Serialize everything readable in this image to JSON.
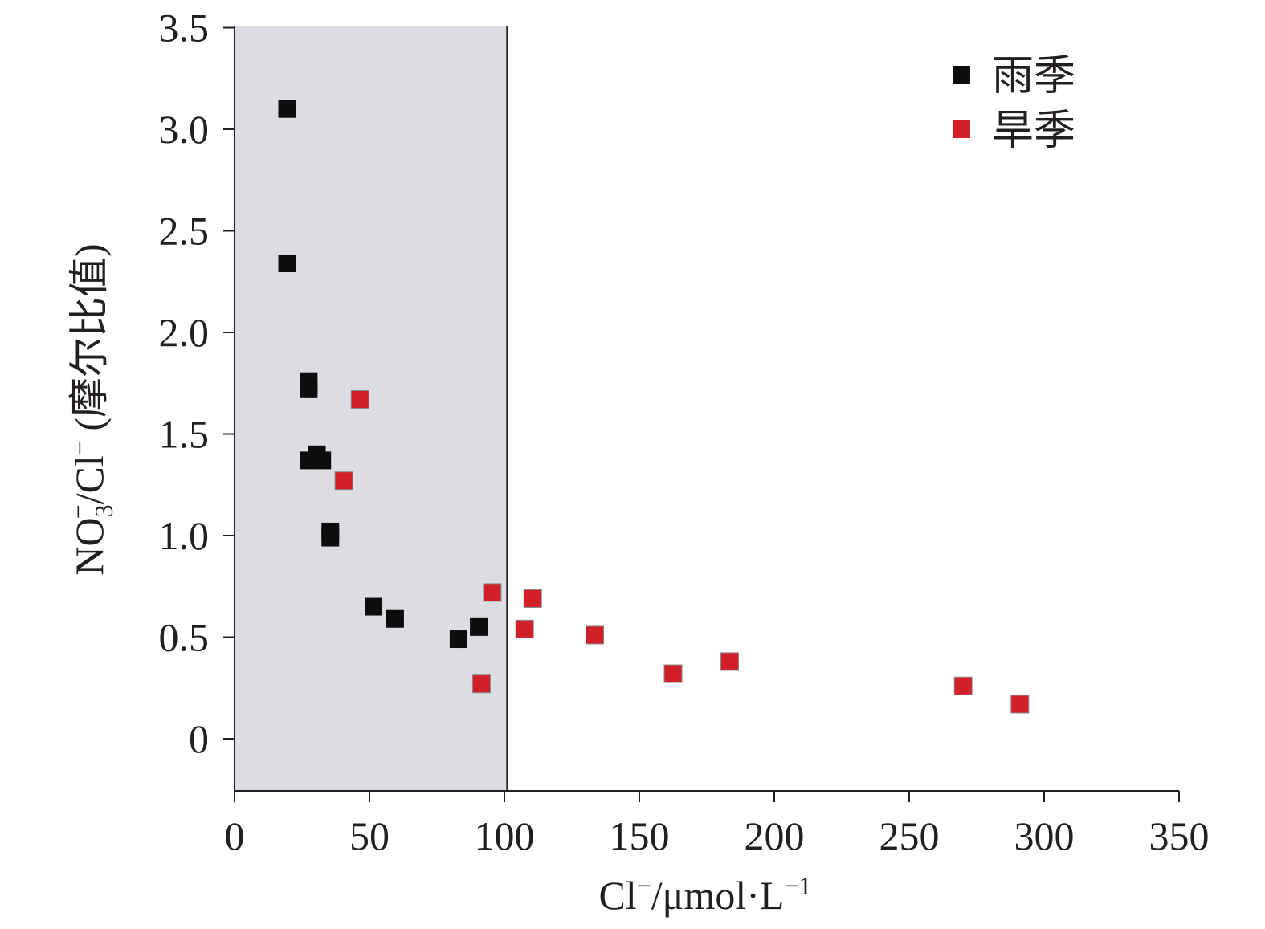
{
  "chart_data": {
    "type": "scatter",
    "title": "",
    "xlabel": {
      "prefix": "Cl",
      "sup1": "−",
      "middle": "/μmol·L",
      "sup2": "−1"
    },
    "ylabel": {
      "part1": "NO",
      "sub": "3",
      "sup1": "−",
      "part2": "/Cl",
      "sup2": "−",
      "part3": " (摩尔比值)"
    },
    "xlim": [
      0,
      350
    ],
    "ylim": [
      -0.25,
      3.5
    ],
    "xticks": [
      "0",
      "50",
      "100",
      "150",
      "200",
      "250",
      "300",
      "350"
    ],
    "xtick_values": [
      0,
      50,
      100,
      150,
      200,
      250,
      300,
      350
    ],
    "yticks": [
      "0",
      "0.5",
      "1.0",
      "1.5",
      "2.0",
      "2.5",
      "3.0",
      "3.5"
    ],
    "ytick_values": [
      0,
      0.5,
      1.0,
      1.5,
      2.0,
      2.5,
      3.0,
      3.5
    ],
    "shaded_region": {
      "x_from": 0,
      "x_to": 101,
      "color": "#dcdde3"
    },
    "grid": false,
    "legend_position": "top-right",
    "series": [
      {
        "name": "雨季",
        "color": "#0d0d0d",
        "points": [
          [
            19.5,
            3.1
          ],
          [
            19.5,
            2.34
          ],
          [
            27.5,
            1.76
          ],
          [
            27.5,
            1.72
          ],
          [
            27.5,
            1.37
          ],
          [
            30.5,
            1.4
          ],
          [
            32.5,
            1.37
          ],
          [
            35.5,
            1.02
          ],
          [
            35.5,
            0.99
          ],
          [
            51.5,
            0.65
          ],
          [
            59.5,
            0.59
          ],
          [
            83,
            0.49
          ],
          [
            90.5,
            0.55
          ]
        ]
      },
      {
        "name": "旱季",
        "color": "#d12027",
        "points": [
          [
            46.5,
            1.67
          ],
          [
            40.5,
            1.27
          ],
          [
            95.5,
            0.72
          ],
          [
            110.5,
            0.69
          ],
          [
            107.5,
            0.54
          ],
          [
            133.5,
            0.51
          ],
          [
            91.5,
            0.27
          ],
          [
            162.5,
            0.32
          ],
          [
            183.5,
            0.38
          ],
          [
            270,
            0.26
          ],
          [
            291,
            0.17
          ]
        ]
      }
    ]
  }
}
